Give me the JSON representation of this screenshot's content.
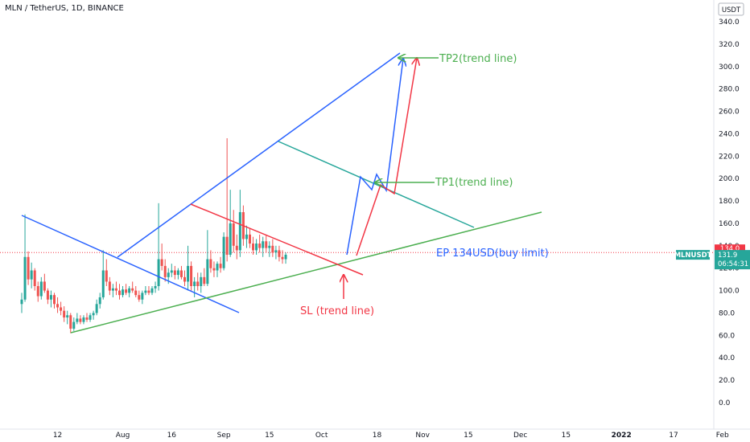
{
  "header": {
    "title": "MLN / TetherUS, 1D, BINANCE"
  },
  "price_axis": {
    "currency": "USDT"
  },
  "markers": {
    "limit_price": "134.0",
    "symbol": "MLNUSDT",
    "last_price": "131.9",
    "countdown": "06:54:31"
  },
  "annotations": {
    "tp2": "TP2(trend line)",
    "tp1": "TP1(trend line)",
    "ep": "EP 134USD(buy limit)",
    "sl": "SL (trend line)"
  },
  "colors": {
    "up": "#26a69a",
    "down": "#ef5350",
    "blue": "#2962ff",
    "red": "#f23645",
    "green": "#4caf50",
    "teal": "#26a69a",
    "price_line": "#f23645"
  },
  "chart_data": {
    "type": "candlestick",
    "ylim": [
      -20,
      340
    ],
    "y_ticks": [
      0,
      20,
      40,
      60,
      80,
      100,
      120,
      140,
      160,
      180,
      200,
      220,
      240,
      260,
      280,
      300,
      320,
      340
    ],
    "y_tick_labels": [
      "0.0",
      "20.0",
      "40.0",
      "60.0",
      "80.0",
      "100.0",
      "120.0",
      "140.0",
      "160.0",
      "180.0",
      "200.0",
      "220.0",
      "240.0",
      "260.0",
      "280.0",
      "300.0",
      "320.0",
      "340.0"
    ],
    "x_tick_labels": [
      "12",
      "Aug",
      "16",
      "Sep",
      "15",
      "Oct",
      "18",
      "Nov",
      "15",
      "Dec",
      "15",
      "2022",
      "17",
      "Feb"
    ],
    "x_tick_days": [
      11,
      31,
      46,
      62,
      76,
      92,
      109,
      123,
      137,
      153,
      167,
      184,
      200,
      215
    ],
    "start_date": "2021-07-01",
    "ohlc": [
      [
        0,
        88,
        98,
        80,
        92
      ],
      [
        1,
        92,
        168,
        90,
        130
      ],
      [
        2,
        130,
        135,
        105,
        110
      ],
      [
        3,
        110,
        125,
        102,
        118
      ],
      [
        4,
        118,
        120,
        100,
        104
      ],
      [
        5,
        104,
        108,
        90,
        95
      ],
      [
        6,
        95,
        112,
        92,
        108
      ],
      [
        7,
        108,
        115,
        98,
        100
      ],
      [
        8,
        100,
        102,
        88,
        92
      ],
      [
        9,
        92,
        100,
        85,
        96
      ],
      [
        10,
        96,
        98,
        84,
        88
      ],
      [
        11,
        88,
        94,
        80,
        85
      ],
      [
        12,
        85,
        90,
        78,
        82
      ],
      [
        13,
        82,
        86,
        72,
        76
      ],
      [
        14,
        76,
        82,
        70,
        78
      ],
      [
        15,
        78,
        80,
        62,
        66
      ],
      [
        16,
        66,
        76,
        64,
        72
      ],
      [
        17,
        72,
        80,
        70,
        75
      ],
      [
        18,
        75,
        78,
        70,
        72
      ],
      [
        19,
        72,
        78,
        70,
        76
      ],
      [
        20,
        76,
        80,
        72,
        74
      ],
      [
        21,
        74,
        80,
        72,
        78
      ],
      [
        22,
        78,
        82,
        74,
        80
      ],
      [
        23,
        80,
        92,
        78,
        88
      ],
      [
        24,
        88,
        98,
        84,
        94
      ],
      [
        25,
        94,
        136,
        92,
        118
      ],
      [
        26,
        118,
        128,
        104,
        108
      ],
      [
        27,
        108,
        112,
        96,
        100
      ],
      [
        28,
        100,
        106,
        94,
        102
      ],
      [
        29,
        102,
        108,
        96,
        100
      ],
      [
        30,
        100,
        106,
        92,
        96
      ],
      [
        31,
        96,
        104,
        94,
        101
      ],
      [
        32,
        101,
        106,
        96,
        98
      ],
      [
        33,
        98,
        104,
        94,
        102
      ],
      [
        34,
        102,
        108,
        98,
        100
      ],
      [
        35,
        100,
        104,
        94,
        96
      ],
      [
        36,
        96,
        100,
        90,
        92
      ],
      [
        37,
        92,
        100,
        88,
        98
      ],
      [
        38,
        98,
        104,
        96,
        100
      ],
      [
        39,
        100,
        104,
        96,
        98
      ],
      [
        40,
        98,
        104,
        96,
        102
      ],
      [
        41,
        102,
        108,
        98,
        104
      ],
      [
        42,
        104,
        178,
        100,
        128
      ],
      [
        43,
        128,
        142,
        118,
        122
      ],
      [
        44,
        122,
        128,
        108,
        112
      ],
      [
        45,
        112,
        120,
        106,
        116
      ],
      [
        46,
        116,
        124,
        112,
        118
      ],
      [
        47,
        118,
        122,
        110,
        114
      ],
      [
        48,
        114,
        120,
        110,
        118
      ],
      [
        49,
        118,
        122,
        110,
        112
      ],
      [
        50,
        112,
        118,
        104,
        108
      ],
      [
        51,
        108,
        140,
        100,
        122
      ],
      [
        52,
        122,
        126,
        100,
        104
      ],
      [
        53,
        104,
        112,
        94,
        108
      ],
      [
        54,
        108,
        116,
        100,
        104
      ],
      [
        55,
        104,
        116,
        98,
        112
      ],
      [
        56,
        112,
        120,
        104,
        106
      ],
      [
        57,
        106,
        154,
        104,
        128
      ],
      [
        58,
        128,
        136,
        116,
        120
      ],
      [
        59,
        120,
        126,
        112,
        118
      ],
      [
        60,
        118,
        126,
        112,
        124
      ],
      [
        61,
        124,
        130,
        116,
        120
      ],
      [
        62,
        120,
        152,
        118,
        148
      ],
      [
        63,
        148,
        236,
        126,
        132
      ],
      [
        64,
        132,
        190,
        130,
        160
      ],
      [
        65,
        160,
        172,
        134,
        140
      ],
      [
        66,
        140,
        150,
        128,
        136
      ],
      [
        67,
        136,
        190,
        130,
        170
      ],
      [
        68,
        170,
        176,
        140,
        146
      ],
      [
        69,
        146,
        158,
        138,
        150
      ],
      [
        70,
        150,
        156,
        138,
        142
      ],
      [
        71,
        142,
        148,
        132,
        136
      ],
      [
        72,
        136,
        146,
        132,
        142
      ],
      [
        73,
        142,
        150,
        134,
        138
      ],
      [
        74,
        138,
        148,
        130,
        144
      ],
      [
        75,
        144,
        150,
        134,
        138
      ],
      [
        76,
        138,
        144,
        130,
        140
      ],
      [
        77,
        140,
        146,
        130,
        134
      ],
      [
        78,
        134,
        140,
        128,
        136
      ],
      [
        79,
        136,
        140,
        126,
        130
      ],
      [
        80,
        130,
        136,
        124,
        128
      ],
      [
        81,
        128,
        134,
        124,
        132
      ]
    ],
    "price_line": 134.0,
    "last_price": 131.9
  }
}
